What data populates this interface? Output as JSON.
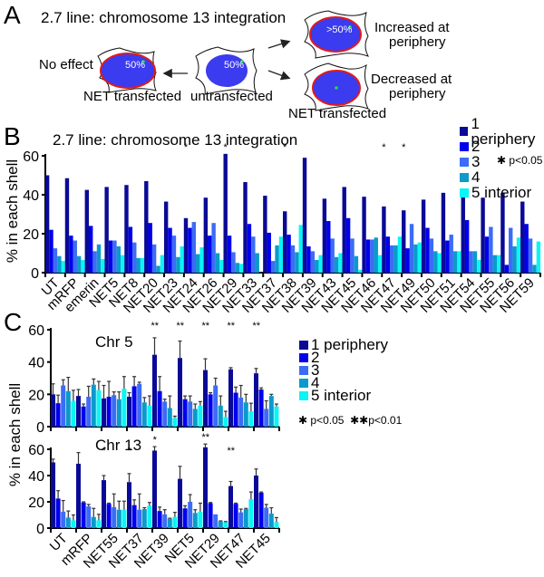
{
  "colors": {
    "shell1": "#0a0a96",
    "shell2": "#0000ee",
    "shell3": "#3c6cf5",
    "shell4": "#0a9acb",
    "shell5": "#0af5f5",
    "nucleus": "#3b3bf0",
    "nuclear_envelope": "#e01b1b",
    "locus": "#22dd44",
    "arrow": "#222222"
  },
  "panelA": {
    "letter": "A",
    "title": "2.7 line: chromosome 13 integration",
    "cells": [
      {
        "id": "no-effect",
        "side_label": "No effect",
        "percent": "50%",
        "below_label": "NET transfected",
        "envelope": true
      },
      {
        "id": "untransfected",
        "percent": "50%",
        "below_label": "untransfected",
        "envelope": false
      },
      {
        "id": "increased",
        "side_label_line1": "Increased at",
        "side_label_line2": "periphery",
        "percent": ">50%",
        "envelope": true
      },
      {
        "id": "decreased",
        "side_label_line1": "Decreased at",
        "side_label_line2": "periphery",
        "percent": "",
        "below_label": "NET transfected",
        "envelope": true
      }
    ]
  },
  "legend": {
    "items": [
      "1 periphery",
      "2",
      "3",
      "4",
      "5 interior"
    ],
    "sig_single": "p<0.05",
    "sig_double": "p<0.01"
  },
  "panelB": {
    "letter": "B"
  },
  "panelC": {
    "letter": "C"
  },
  "chart_data": [
    {
      "type": "bar",
      "id": "B",
      "title": "2.7 line: chromosome 13 integration",
      "xlabel": "",
      "ylabel": "% in each shell",
      "ylim": [
        0,
        60
      ],
      "yticks": [
        0,
        20,
        40,
        60
      ],
      "legend_position": "top-right",
      "series_names": [
        "1 periphery",
        "2",
        "3",
        "4",
        "5 interior"
      ],
      "categories": [
        "UT",
        "mRFP",
        "emerin",
        "NET5",
        "NET8",
        "NET20",
        "NET23",
        "NET24",
        "NET26",
        "NET29",
        "NET33",
        "NET37",
        "NET38",
        "NET39",
        "NET43",
        "NET45",
        "NET46",
        "NET47",
        "NET49",
        "NET50",
        "NET51",
        "NET54",
        "NET55",
        "NET56",
        "NET59"
      ],
      "values": [
        [
          50,
          22,
          12.5,
          8.5,
          6
        ],
        [
          48.5,
          19,
          16.5,
          8.5,
          6.5
        ],
        [
          42.5,
          24,
          11,
          14.5,
          7
        ],
        [
          44,
          16.5,
          16.5,
          13.5,
          9
        ],
        [
          45,
          23.5,
          15.5,
          7.5,
          7.5
        ],
        [
          47,
          25.5,
          14.5,
          3.5,
          9
        ],
        [
          36.5,
          23,
          19,
          8,
          13.5
        ],
        [
          28,
          23,
          26,
          9.5,
          13
        ],
        [
          38.5,
          19,
          25.5,
          10,
          6.5
        ],
        [
          61,
          19,
          10.5,
          5,
          4.5
        ],
        [
          46.5,
          25,
          18.5,
          10,
          0
        ],
        [
          39.5,
          20.5,
          6,
          14,
          18.5
        ],
        [
          31.5,
          19.5,
          14,
          10.5,
          24.5
        ],
        [
          59,
          13.5,
          11,
          6.5,
          9
        ],
        [
          38,
          26.5,
          17.5,
          8,
          10
        ],
        [
          44,
          28,
          17.5,
          8.5,
          1.5
        ],
        [
          39,
          17,
          17,
          18,
          9
        ],
        [
          34,
          18.5,
          14,
          14,
          18.5
        ],
        [
          32,
          12.5,
          25,
          14.5,
          15.5
        ],
        [
          37.5,
          23,
          17.5,
          11,
          10
        ],
        [
          41,
          16.5,
          19.5,
          11,
          11
        ],
        [
          42.5,
          27,
          11,
          11,
          6.5
        ],
        [
          38.5,
          18.5,
          23.5,
          9,
          9
        ],
        [
          41,
          4,
          23,
          13.5,
          18
        ],
        [
          36.5,
          25,
          17.5,
          4,
          16
        ]
      ],
      "significance": {
        "NET24": "*",
        "NET29": "*",
        "NET38": "*",
        "NET47": "*",
        "NET49": "*"
      },
      "sig_legend": "* p<0.05"
    },
    {
      "type": "bar",
      "id": "C-chr5",
      "title": "Chr 5",
      "xlabel": "",
      "ylabel": "% in each shell",
      "ylim": [
        0,
        60
      ],
      "yticks": [
        0,
        20,
        40,
        60
      ],
      "legend_position": "right",
      "series_names": [
        "1 periphery",
        "2",
        "3",
        "4",
        "5 interior"
      ],
      "categories": [
        "UT",
        "mRFP",
        "NET55",
        "NET37",
        "NET39",
        "NET5",
        "NET29",
        "NET47",
        "NET45"
      ],
      "values": [
        [
          20,
          14.5,
          25.5,
          22,
          16
        ],
        [
          19,
          12.5,
          18.5,
          26,
          22.5
        ],
        [
          17.5,
          18.5,
          19.5,
          17,
          23.5
        ],
        [
          18.5,
          25,
          26.5,
          15,
          13
        ],
        [
          44.5,
          22,
          15.5,
          11.5,
          5.5
        ],
        [
          42.5,
          17,
          15.5,
          11,
          13
        ],
        [
          35,
          20,
          25.5,
          13,
          6
        ],
        [
          35.5,
          21,
          18,
          15,
          9.5
        ],
        [
          33,
          23,
          11,
          19,
          12.5
        ]
      ],
      "errors": [
        [
          6.5,
          5,
          3.5,
          8.5,
          6.5
        ],
        [
          4,
          1.5,
          6.5,
          3.5,
          5.5
        ],
        [
          8,
          9.5,
          2,
          4.5,
          7.5
        ],
        [
          2.5,
          6,
          1,
          3,
          6
        ],
        [
          10.5,
          9,
          1.5,
          7.5,
          1
        ],
        [
          10.5,
          2,
          3.5,
          3,
          2.5
        ],
        [
          7,
          1,
          4.5,
          6,
          3.5
        ],
        [
          1,
          3.5,
          7.5,
          5,
          5
        ],
        [
          3,
          1,
          5,
          1,
          1.5
        ]
      ],
      "significance": {
        "NET39": "**",
        "NET5": "**",
        "NET29": "**",
        "NET47": "**",
        "NET45": "**"
      }
    },
    {
      "type": "bar",
      "id": "C-chr13",
      "title": "Chr 13",
      "xlabel": "",
      "ylabel": "% in each shell",
      "ylim": [
        0,
        60
      ],
      "yticks": [
        0,
        20,
        40,
        60
      ],
      "legend_position": "right",
      "series_names": [
        "1 periphery",
        "2",
        "3",
        "4",
        "5 interior"
      ],
      "categories": [
        "UT",
        "mRFP",
        "NET55",
        "NET37",
        "NET39",
        "NET5",
        "NET29",
        "NET47",
        "NET45"
      ],
      "values": [
        [
          50,
          22.5,
          12.5,
          8,
          6
        ],
        [
          49,
          19.5,
          16.5,
          8.5,
          6
        ],
        [
          36.5,
          18.5,
          16,
          14,
          14
        ],
        [
          35,
          17.5,
          14,
          14.5,
          17
        ],
        [
          59,
          13,
          10.5,
          7,
          8.5
        ],
        [
          37.5,
          15,
          20,
          11.5,
          12.5
        ],
        [
          61.5,
          19,
          10.5,
          5,
          4.5
        ],
        [
          32,
          18.5,
          12,
          14.5,
          22
        ],
        [
          40,
          27,
          15.5,
          11,
          4.5
        ]
      ],
      "errors": [
        [
          2.5,
          6,
          8.5,
          5,
          4
        ],
        [
          8.5,
          0.5,
          1.5,
          6.5,
          4.5
        ],
        [
          3.5,
          0.5,
          10,
          6.5,
          6.5
        ],
        [
          6.5,
          4,
          12,
          1,
          2.5
        ],
        [
          3,
          3,
          3.5,
          0.5,
          3.5
        ],
        [
          9.5,
          2,
          5.5,
          2.5,
          6.5
        ],
        [
          2.5,
          0.5,
          0,
          0.5,
          0.5
        ],
        [
          3.5,
          0.5,
          2.5,
          0.5,
          5.5
        ],
        [
          5,
          0.5,
          2.5,
          4.5,
          3.5
        ]
      ],
      "significance": {
        "NET55": "*",
        "NET37": "*",
        "NET39": "*",
        "NET29": "**",
        "NET47": "**"
      }
    }
  ]
}
